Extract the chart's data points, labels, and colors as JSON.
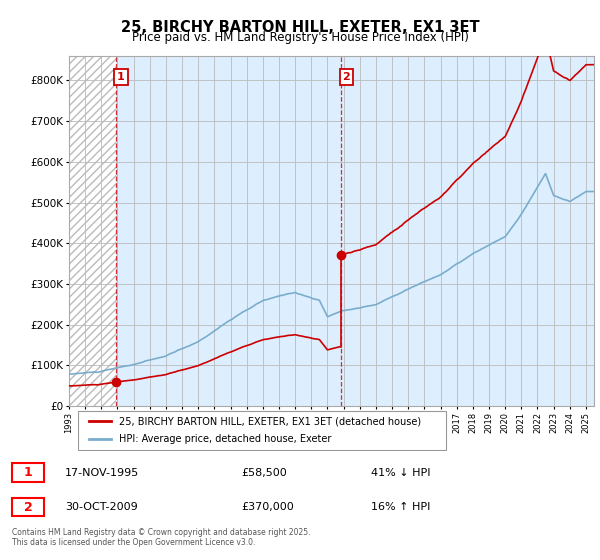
{
  "title": "25, BIRCHY BARTON HILL, EXETER, EX1 3ET",
  "subtitle": "Price paid vs. HM Land Registry's House Price Index (HPI)",
  "red_line_color": "#cc0000",
  "blue_line_color": "#7aadcc",
  "grid_color": "#cccccc",
  "hatch_color": "#cccccc",
  "bg_left_color": "#f0f0f0",
  "bg_right_color": "#ddeeff",
  "marker1_label": "1",
  "marker2_label": "2",
  "purchase1_year": 1995.88,
  "purchase1_price": 58500,
  "purchase2_year": 2009.83,
  "purchase2_price": 370000,
  "legend_entry1": "25, BIRCHY BARTON HILL, EXETER, EX1 3ET (detached house)",
  "legend_entry2": "HPI: Average price, detached house, Exeter",
  "table_row1": [
    "1",
    "17-NOV-1995",
    "£58,500",
    "41% ↓ HPI"
  ],
  "table_row2": [
    "2",
    "30-OCT-2009",
    "£370,000",
    "16% ↑ HPI"
  ],
  "footer": "Contains HM Land Registry data © Crown copyright and database right 2025.\nThis data is licensed under the Open Government Licence v3.0.",
  "xmin": 1993.0,
  "xmax": 2025.5,
  "ymin": 0,
  "ymax": 860000,
  "yticks": [
    0,
    100000,
    200000,
    300000,
    400000,
    500000,
    600000,
    700000,
    800000
  ],
  "ytick_labels": [
    "£0",
    "£100K",
    "£200K",
    "£300K",
    "£400K",
    "£500K",
    "£600K",
    "£700K",
    "£800K"
  ]
}
